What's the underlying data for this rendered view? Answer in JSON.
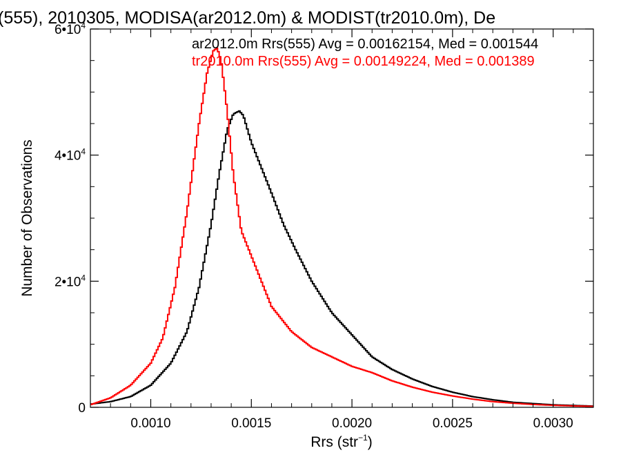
{
  "chart_data": {
    "type": "line",
    "title": "(555), 2010305, MODISA(ar2012.0m) & MODIST(tr2010.0m), De",
    "xlabel": "Rrs (str",
    "xlabel_sup": "−1",
    "xlabel_close": ")",
    "ylabel": "Number of Observations",
    "xlim": [
      0.0007,
      0.0032
    ],
    "ylim": [
      0,
      60000
    ],
    "x_ticks": [
      {
        "value": 0.001,
        "label": "0.0010"
      },
      {
        "value": 0.0015,
        "label": "0.0015"
      },
      {
        "value": 0.002,
        "label": "0.0020"
      },
      {
        "value": 0.0025,
        "label": "0.0025"
      },
      {
        "value": 0.003,
        "label": "0.0030"
      }
    ],
    "y_ticks": [
      {
        "value": 0,
        "base": "0",
        "exp": ""
      },
      {
        "value": 20000,
        "base": "2•10",
        "exp": "4"
      },
      {
        "value": 40000,
        "base": "4•10",
        "exp": "4"
      },
      {
        "value": 60000,
        "base": "6•10",
        "exp": "4"
      }
    ],
    "grid": false,
    "legend_position": "top-right",
    "series": [
      {
        "name": "ar2012.0m Rrs(555) Avg = 0.00162154, Med = 0.001544",
        "color": "#000000",
        "x": [
          0.0007,
          0.0008,
          0.0009,
          0.001,
          0.0011,
          0.00118,
          0.00124,
          0.0013,
          0.00134,
          0.00138,
          0.00141,
          0.00144,
          0.00146,
          0.0015,
          0.00155,
          0.0016,
          0.00166,
          0.00172,
          0.0018,
          0.0019,
          0.002,
          0.0021,
          0.0022,
          0.0023,
          0.0024,
          0.0025,
          0.0026,
          0.0027,
          0.0028,
          0.0029,
          0.003,
          0.0031,
          0.0032
        ],
        "y": [
          500,
          900,
          1700,
          3500,
          7000,
          12000,
          19000,
          29000,
          37000,
          44000,
          46500,
          47000,
          46300,
          42000,
          38000,
          34000,
          29000,
          25000,
          20000,
          15000,
          11500,
          8000,
          6000,
          4500,
          3300,
          2400,
          1700,
          1200,
          800,
          600,
          400,
          300,
          200
        ]
      },
      {
        "name": "tr2010.0m Rrs(555) Avg = 0.00149224, Med = 0.001389",
        "color": "#ff0000",
        "x": [
          0.0007,
          0.0008,
          0.0009,
          0.001,
          0.00106,
          0.00112,
          0.00118,
          0.00124,
          0.00128,
          0.00131,
          0.00133,
          0.00135,
          0.00138,
          0.00141,
          0.00145,
          0.0015,
          0.00155,
          0.0016,
          0.0017,
          0.0018,
          0.0019,
          0.002,
          0.0021,
          0.0022,
          0.0023,
          0.0024,
          0.0025,
          0.0026,
          0.0027,
          0.0028,
          0.0029,
          0.003,
          0.0031,
          0.0032
        ],
        "y": [
          400,
          1500,
          3500,
          7000,
          11000,
          19000,
          31000,
          45000,
          53000,
          56500,
          57000,
          55000,
          47000,
          37000,
          28000,
          24000,
          20000,
          16000,
          12000,
          9500,
          8000,
          6500,
          5500,
          4200,
          3200,
          2400,
          1800,
          1300,
          900,
          650,
          450,
          320,
          220,
          150
        ]
      }
    ]
  }
}
